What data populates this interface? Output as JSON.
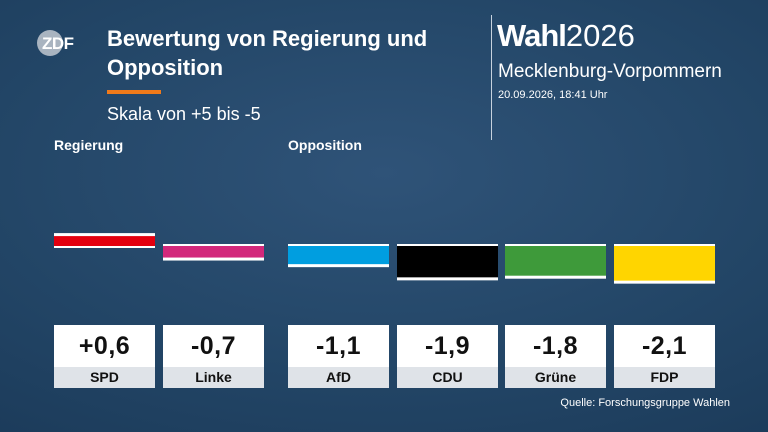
{
  "header": {
    "logo_text": "ZDF",
    "title": "Bewertung von Regierung und Opposition",
    "subtitle": "Skala von +5 bis -5",
    "brand_prefix": "Wahl",
    "brand_year": "2026",
    "state": "Mecklenburg-Vorpommern",
    "timestamp": "20.09.2026, 18:41 Uhr"
  },
  "groups": {
    "government": "Regierung",
    "opposition": "Opposition"
  },
  "footer": {
    "source": "Quelle: Forschungsgruppe Wahlen"
  },
  "colors": {
    "accent": "#f07a1a",
    "SPD": "#e3000f",
    "Linke": "#d3287b",
    "AfD": "#009ee0",
    "CDU": "#000000",
    "Grüne": "#3e9a3a",
    "FDP": "#ffd500"
  },
  "chart_data": {
    "type": "bar",
    "categories": [
      "SPD",
      "Linke",
      "AfD",
      "CDU",
      "Grüne",
      "FDP"
    ],
    "values": [
      0.6,
      -0.7,
      -1.1,
      -1.9,
      -1.8,
      -2.1
    ],
    "value_labels": [
      "+0,6",
      "-0,7",
      "-1,1",
      "-1,9",
      "-1,8",
      "-2,1"
    ],
    "ylim": [
      -5,
      5
    ],
    "groups": [
      {
        "name": "Regierung",
        "categories": [
          "SPD"
        ]
      },
      {
        "name": "Opposition",
        "categories": [
          "Linke",
          "AfD",
          "CDU",
          "Grüne",
          "FDP"
        ]
      }
    ],
    "grid": false,
    "legend": "none"
  }
}
